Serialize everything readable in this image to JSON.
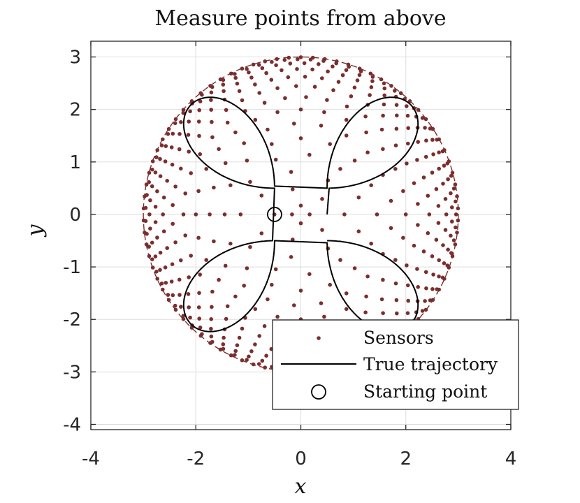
{
  "chart_data": {
    "type": "scatter",
    "title": "Measure points from above",
    "xlabel": "x",
    "ylabel": "y",
    "xlim": [
      -4,
      4
    ],
    "ylim": [
      -4.1,
      3.3
    ],
    "xticks": [
      -4,
      -2,
      0,
      2,
      4
    ],
    "yticks": [
      3,
      2,
      1,
      0,
      -1,
      -2,
      -3,
      -4
    ],
    "grid": true,
    "legend_position": "bottom-right",
    "colors": {
      "sensor": "#7a2e2e",
      "trajectory": "#000000",
      "grid": "#dddddd",
      "axes": "#262626"
    },
    "sphere": {
      "radius": 3
    },
    "trajectory": {
      "lobe_radius": 2.25,
      "center_offset": 0.5
    },
    "starting_point": {
      "x": -0.5,
      "y": 0
    },
    "series": [
      {
        "name": "Sensors",
        "kind": "markers"
      },
      {
        "name": "True trajectory",
        "kind": "line"
      },
      {
        "name": "Starting point",
        "kind": "circle"
      }
    ]
  }
}
